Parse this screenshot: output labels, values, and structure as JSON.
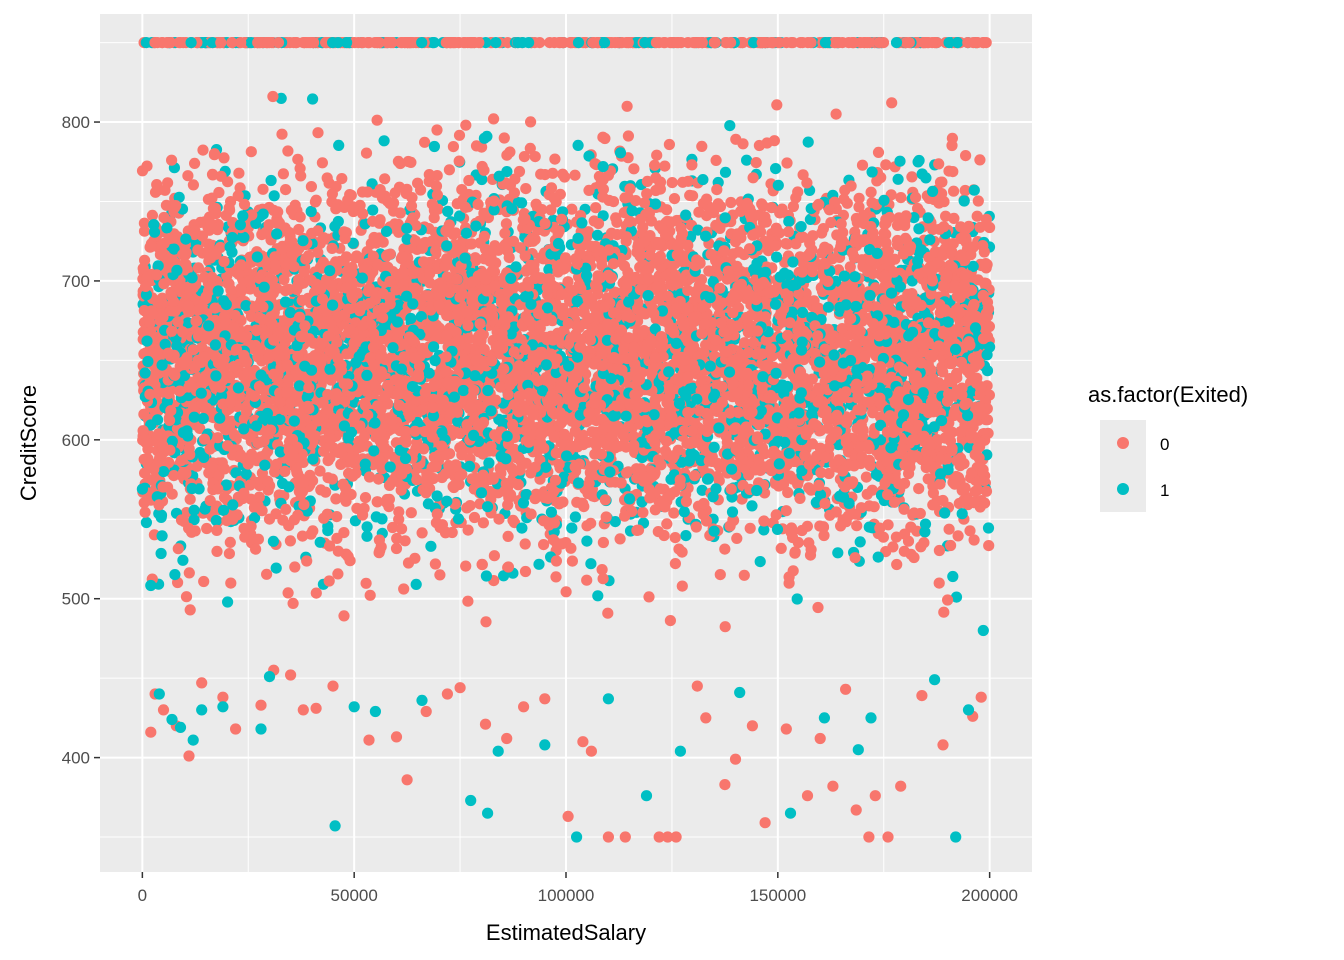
{
  "chart_data": {
    "type": "scatter",
    "xlabel": "EstimatedSalary",
    "ylabel": "CreditScore",
    "xlim": [
      -10000,
      210000
    ],
    "ylim": [
      328,
      868
    ],
    "x_ticks": [
      0,
      50000,
      100000,
      150000,
      200000
    ],
    "x_tick_labels": [
      "0",
      "50000",
      "100000",
      "150000",
      "200000"
    ],
    "y_ticks": [
      400,
      500,
      600,
      700,
      800
    ],
    "y_tick_labels": [
      "400",
      "500",
      "600",
      "700",
      "800"
    ],
    "grid": true,
    "legend": {
      "title": "as.factor(Exited)",
      "position": "right",
      "entries": [
        "0",
        "1"
      ]
    },
    "colors": {
      "0": "#F8766D",
      "1": "#00BFC4",
      "panel": "#EBEBEB",
      "grid": "#FFFFFF"
    },
    "series": [
      {
        "name": "0",
        "color": "#F8766D",
        "density_note": "dense cloud, x 0–200000, y ~430–850",
        "x": [
          5000,
          11000,
          22000,
          28000,
          31000,
          38000,
          45000,
          53500,
          60000,
          62500,
          72000,
          75000,
          86000,
          100500,
          106000,
          110000,
          114000,
          122000,
          124000,
          126000,
          133000,
          137500,
          140000,
          147000,
          157000,
          163000,
          168500,
          171500,
          173000,
          176000,
          179000,
          189000,
          196000,
          2000,
          3000,
          8000,
          14000,
          19000,
          35000,
          41000,
          67000,
          81000,
          90000,
          95000,
          104000,
          131000,
          144000,
          152000,
          160000,
          166000,
          184000,
          198000
        ],
        "y": [
          430,
          401,
          418,
          433,
          455,
          430,
          445,
          411,
          413,
          386,
          440,
          444,
          412,
          363,
          404,
          350,
          350,
          350,
          350,
          350,
          425,
          383,
          399,
          359,
          376,
          382,
          367,
          350,
          376,
          350,
          382,
          408,
          426,
          416,
          440,
          420,
          447,
          438,
          452,
          431,
          429,
          421,
          432,
          437,
          410,
          445,
          420,
          418,
          412,
          443,
          439,
          438
        ]
      },
      {
        "name": "1",
        "color": "#00BFC4",
        "x": [
          0,
          4000,
          7000,
          9000,
          12000,
          14000,
          19000,
          28000,
          45500,
          55000,
          77500,
          81500,
          84000,
          95000,
          102500,
          119000,
          127000,
          153000,
          161000,
          169000,
          172000,
          192000,
          195000,
          198500,
          30000,
          50000,
          66000,
          110000,
          141000,
          187000
        ],
        "y": [
          569,
          440,
          424,
          419,
          411,
          430,
          432,
          418,
          357,
          429,
          373,
          365,
          404,
          408,
          350,
          376,
          404,
          365,
          425,
          405,
          425,
          350,
          430,
          480,
          451,
          432,
          436,
          437,
          441,
          449
        ]
      }
    ]
  }
}
